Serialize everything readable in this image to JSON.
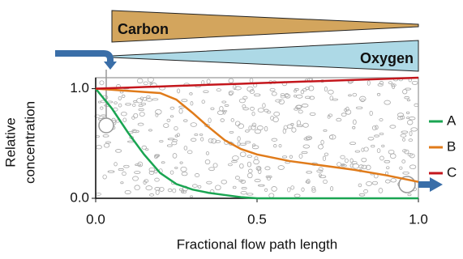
{
  "chart_data": {
    "type": "line",
    "xlabel": "Fractional flow path length",
    "ylabel": [
      "Relative",
      "concentration"
    ],
    "annotations": {
      "carbon": "Carbon",
      "oxygen": "Oxygen"
    },
    "x": [
      0,
      0.05,
      0.1,
      0.15,
      0.2,
      0.25,
      0.3,
      0.35,
      0.4,
      0.45,
      0.5,
      0.6,
      0.7,
      0.8,
      0.9,
      1.0
    ],
    "series": [
      {
        "name": "A",
        "color": "#1aa552",
        "values": [
          1.0,
          0.82,
          0.6,
          0.4,
          0.23,
          0.13,
          0.08,
          0.05,
          0.03,
          0.01,
          0.0,
          0.0,
          0.0,
          0.0,
          0.0,
          0.0
        ]
      },
      {
        "name": "B",
        "color": "#e07b1a",
        "values": [
          1.0,
          0.99,
          0.98,
          0.97,
          0.96,
          0.9,
          0.78,
          0.65,
          0.53,
          0.45,
          0.4,
          0.34,
          0.3,
          0.26,
          0.21,
          0.15
        ]
      },
      {
        "name": "C",
        "color": "#c4161c",
        "values": [
          1.0,
          1.005,
          1.01,
          1.015,
          1.02,
          1.025,
          1.03,
          1.035,
          1.04,
          1.045,
          1.05,
          1.06,
          1.07,
          1.08,
          1.09,
          1.1
        ]
      }
    ],
    "xlim": [
      0,
      1.0
    ],
    "xticks": [
      {
        "value": 0,
        "label": "0.0"
      },
      0.5,
      {
        "value": 1,
        "label": "1.0"
      }
    ],
    "ylim": [
      0,
      1.1
    ],
    "yticks": [
      {
        "value": 0,
        "label": "0.0"
      },
      {
        "value": 1,
        "label": "1.0"
      }
    ],
    "legend": "right"
  }
}
